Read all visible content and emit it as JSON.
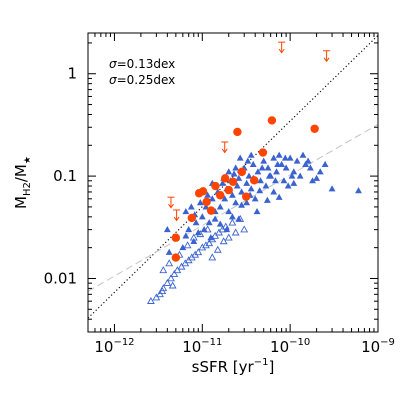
{
  "chart_data": {
    "type": "scatter",
    "title": "",
    "xlabel": "sSFR [yr",
    "xlabel_exp": "−1",
    "xlabel_tail": "]",
    "ylabel": "M",
    "ylabel_sub1": "H2",
    "ylabel_mid": "/M",
    "ylabel_sub2": "★",
    "xscale": "log",
    "yscale": "log",
    "xlim": [
      5e-13,
      1e-09
    ],
    "ylim": [
      0.003,
      2.5
    ],
    "x_ticks": [
      {
        "value": 1e-12,
        "base": "10",
        "exp": "−12"
      },
      {
        "value": 1e-11,
        "base": "10",
        "exp": "−11"
      },
      {
        "value": 1e-10,
        "base": "10",
        "exp": "−10"
      },
      {
        "value": 1e-09,
        "base": "10",
        "exp": "−9"
      }
    ],
    "y_ticks": [
      {
        "value": 0.01,
        "label": "0.01"
      },
      {
        "value": 0.1,
        "label": "0.1"
      },
      {
        "value": 1,
        "label": "1"
      }
    ],
    "grid": false,
    "legend_placement": "top-left",
    "annotations": [
      {
        "prefix": "σ",
        "text": "=0.13dex",
        "color": "#000000"
      },
      {
        "prefix": "σ",
        "text": "=0.25dex",
        "color": "#c8c8c8"
      }
    ],
    "colors": {
      "detections": "#ff4400",
      "upper_limits": "#ff4400",
      "triangles": "#3a62d0",
      "dotted_fit": "#000000",
      "dashed_fit": "#c8c8c8"
    },
    "series": [
      {
        "marker": "filled-circle",
        "points": [
          [
            5e-12,
            0.025
          ],
          [
            7.6e-12,
            0.039
          ],
          [
            9.2e-12,
            0.068
          ],
          [
            1.02e-11,
            0.071
          ],
          [
            1.12e-11,
            0.056
          ],
          [
            1.26e-11,
            0.046
          ],
          [
            1.41e-11,
            0.08
          ],
          [
            1.6e-11,
            0.065
          ],
          [
            1.82e-11,
            0.095
          ],
          [
            2e-11,
            0.073
          ],
          [
            2.24e-11,
            0.088
          ],
          [
            2.51e-11,
            0.27
          ],
          [
            2.82e-11,
            0.11
          ],
          [
            3.16e-11,
            0.063
          ],
          [
            3.9e-11,
            0.091
          ],
          [
            4.9e-11,
            0.17
          ],
          [
            6.2e-11,
            0.35
          ],
          [
            1.9e-10,
            0.29
          ],
          [
            5e-12,
            0.016
          ]
        ]
      },
      {
        "marker": "upper-limit-arrow",
        "points": [
          [
            4.4e-12,
            0.052
          ],
          [
            5.1e-12,
            0.039
          ],
          [
            1.8e-11,
            0.18
          ],
          [
            8e-11,
            1.7
          ],
          [
            2.6e-10,
            1.4
          ]
        ]
      },
      {
        "marker": "filled-triangle",
        "points": [
          [
            4.2e-12,
            0.018
          ],
          [
            5e-12,
            0.016
          ],
          [
            6e-12,
            0.02
          ],
          [
            6.5e-12,
            0.026
          ],
          [
            7e-12,
            0.03
          ],
          [
            8e-12,
            0.023
          ],
          [
            8.5e-12,
            0.035
          ],
          [
            9e-12,
            0.028
          ],
          [
            1e-11,
            0.04
          ],
          [
            1.05e-11,
            0.03
          ],
          [
            1.1e-11,
            0.05
          ],
          [
            1.2e-11,
            0.035
          ],
          [
            1.3e-11,
            0.06
          ],
          [
            1.4e-11,
            0.045
          ],
          [
            1.5e-11,
            0.07
          ],
          [
            1.6e-11,
            0.05
          ],
          [
            1.7e-11,
            0.085
          ],
          [
            1.8e-11,
            0.06
          ],
          [
            1.9e-11,
            0.075
          ],
          [
            2e-11,
            0.045
          ],
          [
            2.1e-11,
            0.09
          ],
          [
            2.2e-11,
            0.065
          ],
          [
            2.3e-11,
            0.105
          ],
          [
            2.4e-11,
            0.055
          ],
          [
            2.5e-11,
            0.08
          ],
          [
            2.6e-11,
            0.095
          ],
          [
            2.8e-11,
            0.07
          ],
          [
            3e-11,
            0.12
          ],
          [
            3.2e-11,
            0.085
          ],
          [
            3.4e-11,
            0.1
          ],
          [
            3.6e-11,
            0.075
          ],
          [
            3.8e-11,
            0.13
          ],
          [
            4e-11,
            0.06
          ],
          [
            4.3e-11,
            0.11
          ],
          [
            4.6e-11,
            0.09
          ],
          [
            5e-11,
            0.14
          ],
          [
            5.3e-11,
            0.08
          ],
          [
            5.6e-11,
            0.12
          ],
          [
            6e-11,
            0.1
          ],
          [
            6.5e-11,
            0.15
          ],
          [
            7e-11,
            0.11
          ],
          [
            7.5e-11,
            0.16
          ],
          [
            8e-11,
            0.13
          ],
          [
            8.5e-11,
            0.09
          ],
          [
            9e-11,
            0.12
          ],
          [
            1e-10,
            0.15
          ],
          [
            1.1e-10,
            0.11
          ],
          [
            1.2e-10,
            0.14
          ],
          [
            1.3e-10,
            0.1
          ],
          [
            1.5e-10,
            0.13
          ],
          [
            1.7e-10,
            0.12
          ],
          [
            2e-10,
            0.095
          ],
          [
            2.5e-10,
            0.13
          ],
          [
            3e-10,
            0.075
          ],
          [
            6e-10,
            0.072
          ],
          [
            1.6e-11,
            0.034
          ],
          [
            2.2e-11,
            0.04
          ],
          [
            2.8e-11,
            0.052
          ],
          [
            3.5e-11,
            0.065
          ],
          [
            4.2e-11,
            0.045
          ],
          [
            5.5e-11,
            0.058
          ],
          [
            6.5e-11,
            0.07
          ],
          [
            7.5e-11,
            0.062
          ],
          [
            9.5e-11,
            0.08
          ],
          [
            1.1e-10,
            0.085
          ],
          [
            1.25e-11,
            0.025
          ],
          [
            1.9e-11,
            0.03
          ],
          [
            2.6e-11,
            0.038
          ],
          [
            3.2e-11,
            0.055
          ],
          [
            4.5e-11,
            0.072
          ],
          [
            1.4e-11,
            0.038
          ],
          [
            1.15e-11,
            0.065
          ],
          [
            9.5e-12,
            0.055
          ],
          [
            8.2e-12,
            0.042
          ],
          [
            2e-11,
            0.11
          ],
          [
            2.7e-11,
            0.15
          ],
          [
            3.6e-11,
            0.16
          ],
          [
            4.8e-11,
            0.12
          ],
          [
            6.8e-11,
            0.09
          ],
          [
            1.05e-10,
            0.1
          ],
          [
            1.4e-10,
            0.16
          ],
          [
            1.8e-10,
            0.09
          ],
          [
            2.2e-10,
            0.11
          ],
          [
            4e-12,
            0.03
          ],
          [
            6.5e-12,
            0.045
          ],
          [
            7.5e-12,
            0.05
          ],
          [
            1.3e-11,
            0.085
          ],
          [
            1.75e-11,
            0.095
          ],
          [
            2.4e-11,
            0.12
          ],
          [
            3.8e-11,
            0.095
          ],
          [
            5.8e-11,
            0.1
          ],
          [
            7.2e-11,
            0.13
          ],
          [
            8.8e-11,
            0.15
          ],
          [
            1.6e-10,
            0.14
          ],
          [
            3.3e-11,
            0.14
          ]
        ]
      },
      {
        "marker": "open-triangle",
        "points": [
          [
            2.6e-12,
            0.006
          ],
          [
            3e-12,
            0.0065
          ],
          [
            3.3e-12,
            0.007
          ],
          [
            3.6e-12,
            0.008
          ],
          [
            4e-12,
            0.009
          ],
          [
            4.4e-12,
            0.01
          ],
          [
            4.8e-12,
            0.011
          ],
          [
            5.2e-12,
            0.012
          ],
          [
            5.8e-12,
            0.013
          ],
          [
            6.4e-12,
            0.014
          ],
          [
            7e-12,
            0.015
          ],
          [
            7.6e-12,
            0.016
          ],
          [
            8.3e-12,
            0.017
          ],
          [
            9e-12,
            0.018
          ],
          [
            1e-11,
            0.02
          ],
          [
            1.1e-11,
            0.021
          ],
          [
            1.2e-11,
            0.022
          ],
          [
            1.3e-11,
            0.024
          ],
          [
            1.4e-11,
            0.026
          ],
          [
            1.55e-11,
            0.028
          ],
          [
            1.7e-11,
            0.03
          ],
          [
            1.85e-11,
            0.032
          ],
          [
            2e-11,
            0.025
          ],
          [
            2.2e-11,
            0.035
          ],
          [
            2.4e-11,
            0.028
          ],
          [
            2.7e-11,
            0.038
          ],
          [
            3e-11,
            0.03
          ],
          [
            3.6e-12,
            0.012
          ],
          [
            4.2e-12,
            0.014
          ],
          [
            5.5e-12,
            0.017
          ],
          [
            6.8e-12,
            0.021
          ],
          [
            8e-12,
            0.025
          ],
          [
            9.5e-12,
            0.027
          ],
          [
            1.15e-11,
            0.03
          ],
          [
            1.3e-11,
            0.016
          ],
          [
            1.5e-11,
            0.019
          ],
          [
            1.75e-11,
            0.023
          ],
          [
            3.5e-12,
            0.0075
          ],
          [
            4.6e-12,
            0.0085
          ]
        ]
      }
    ],
    "fit_lines": [
      {
        "style": "dotted",
        "x": [
          5e-13,
          1e-09
        ],
        "y": [
          0.0041,
          2.37
        ]
      },
      {
        "style": "dashed",
        "x": [
          5e-13,
          1e-09
        ],
        "y": [
          0.0075,
          0.32
        ]
      }
    ]
  }
}
